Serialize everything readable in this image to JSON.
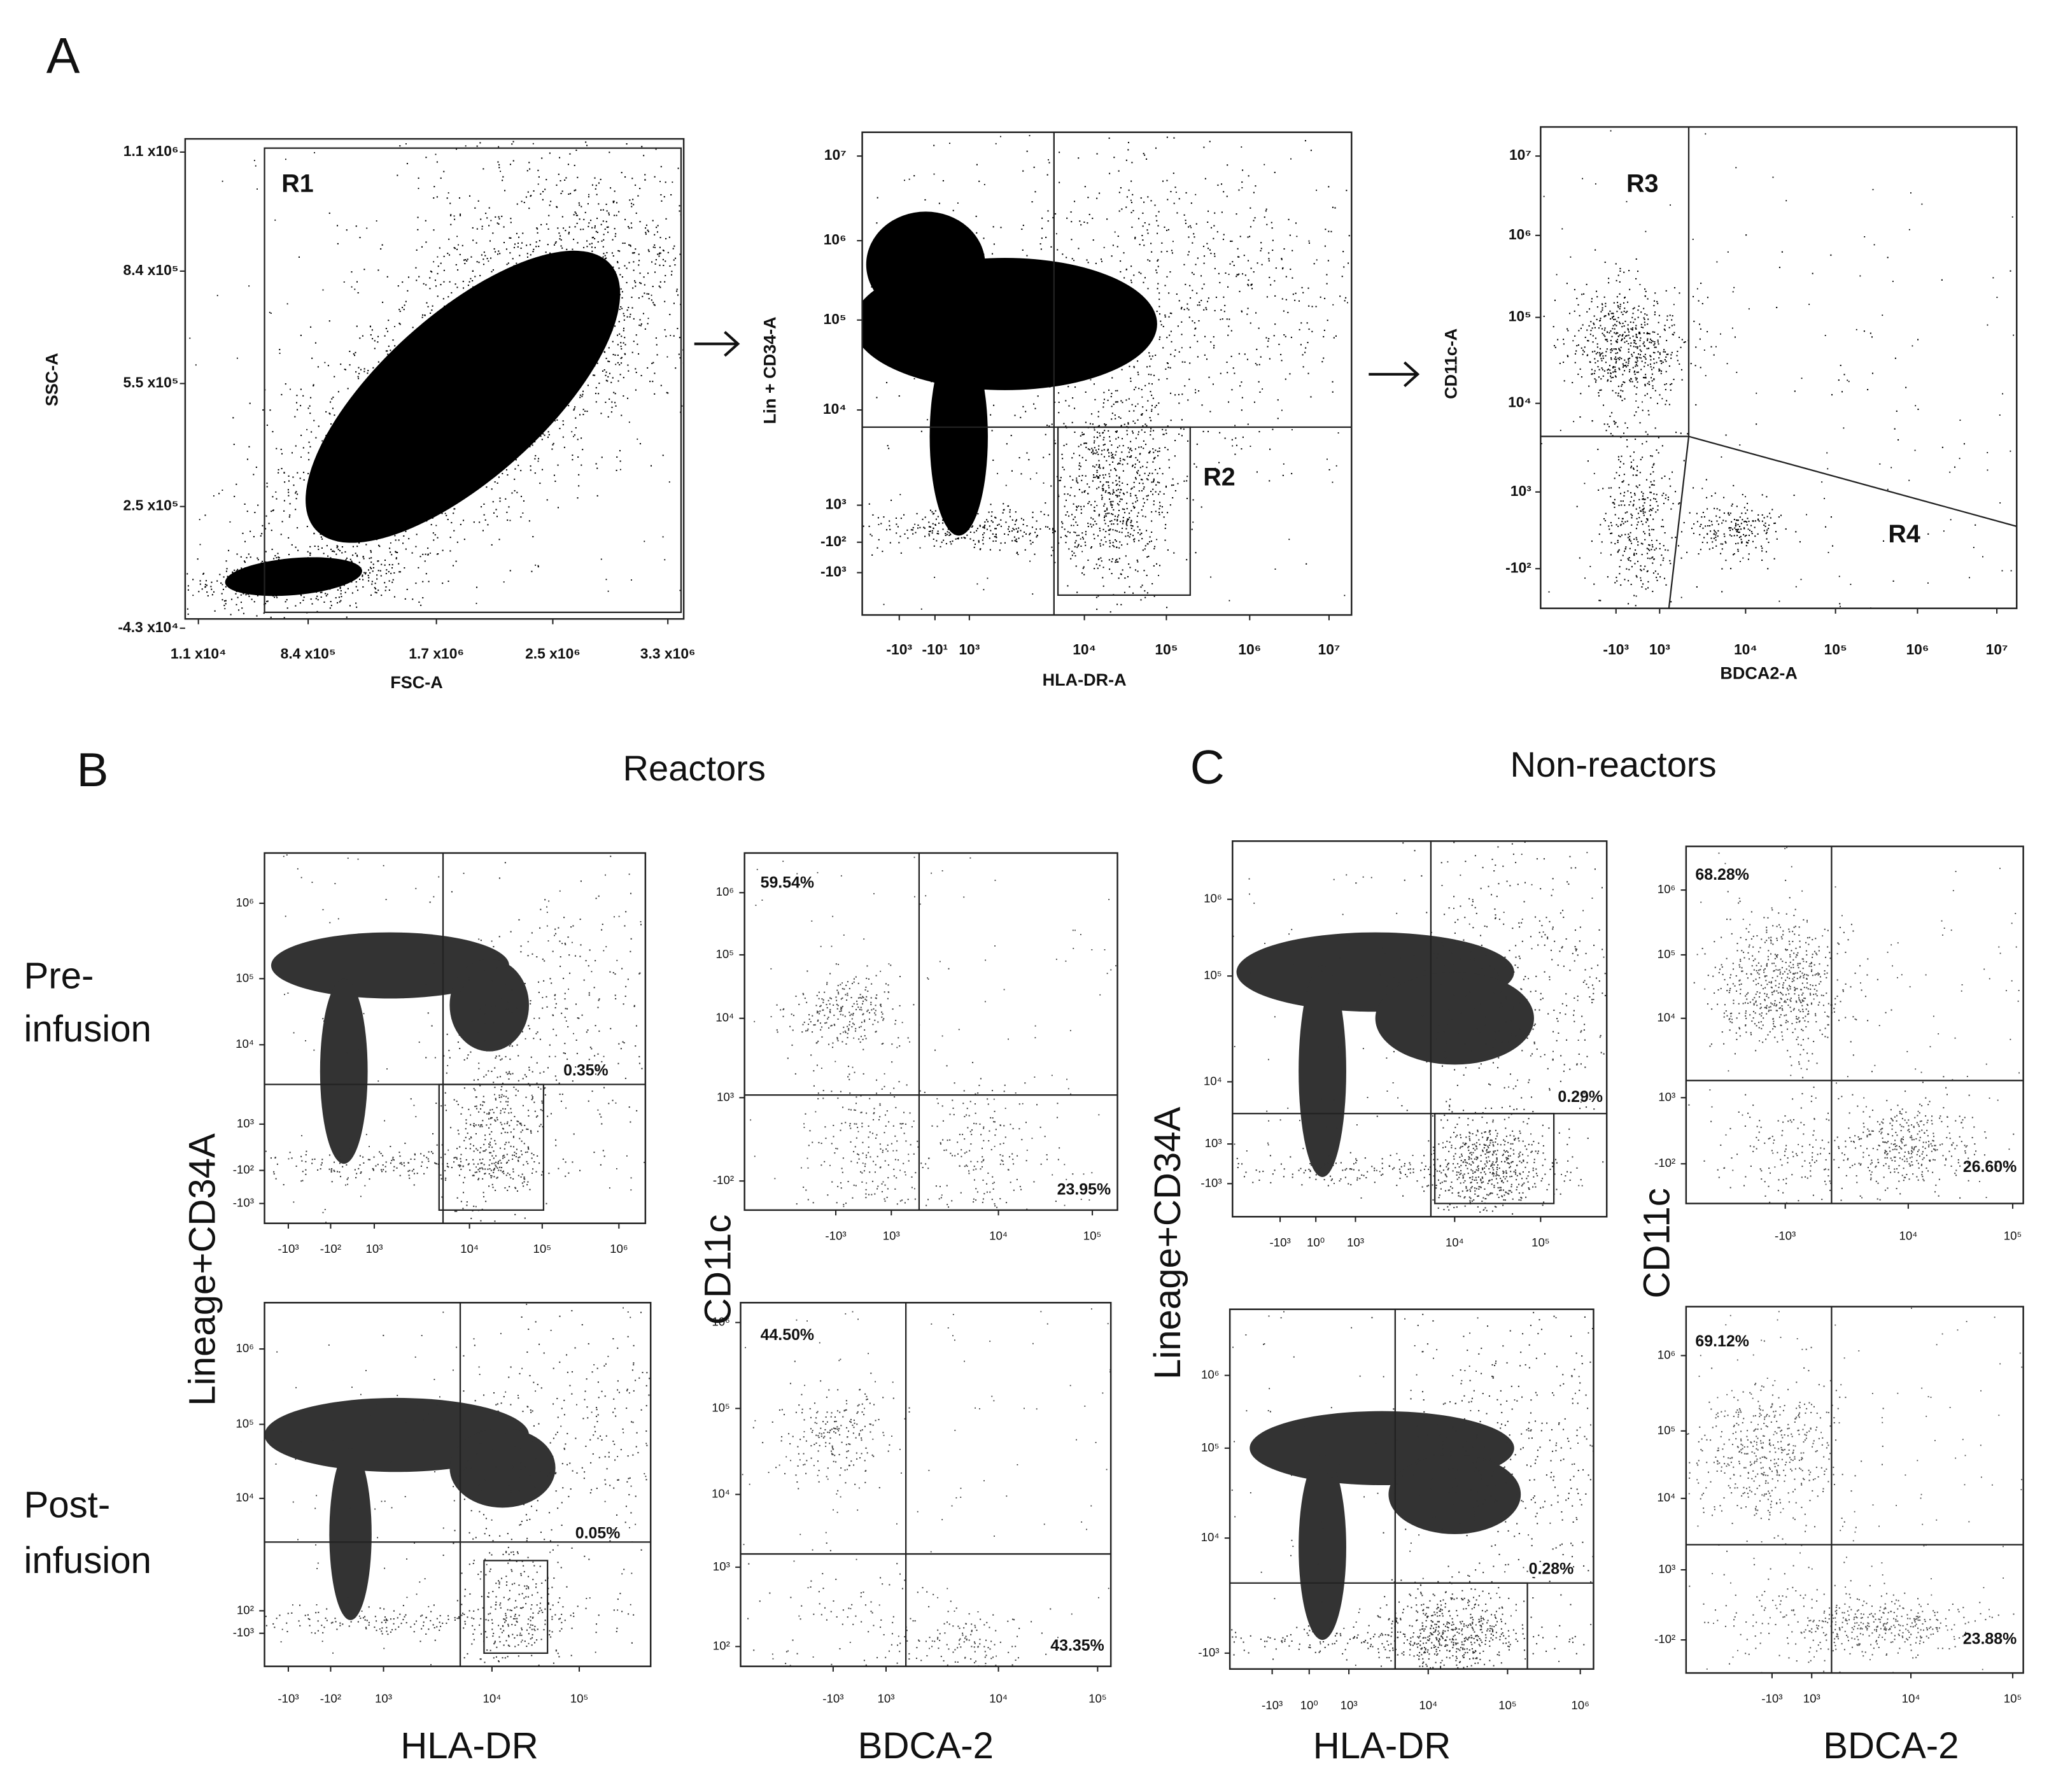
{
  "panel_a": {
    "label": "A",
    "plots": [
      {
        "x_label": "FSC-A",
        "y_label": "SSC-A",
        "x_ticks": [
          "1.1 x10⁴",
          "8.4 x10⁵",
          "1.7 x10⁶",
          "2.5 x10⁶",
          "3.3 x10⁶"
        ],
        "y_ticks": [
          "1.1 x10⁶",
          "8.4 x10⁵",
          "5.5 x10⁵",
          "2.5 x10⁵",
          "-4.3 x10⁴"
        ],
        "gates": [
          "R1"
        ]
      },
      {
        "x_label": "HLA-DR-A",
        "y_label": "Lin + CD34-A",
        "x_ticks": [
          "-10³",
          "-10¹",
          "10³",
          "10⁴",
          "10⁵",
          "10⁶",
          "10⁷"
        ],
        "y_ticks": [
          "10⁷",
          "10⁶",
          "10⁵",
          "10⁴",
          "10³",
          "-10²",
          "-10³"
        ],
        "gates": [
          "R2"
        ]
      },
      {
        "x_label": "BDCA2-A",
        "y_label": "CD11c-A",
        "x_ticks": [
          "-10³",
          "10³",
          "10⁴",
          "10⁵",
          "10⁶",
          "10⁷"
        ],
        "y_ticks": [
          "10⁷",
          "10⁶",
          "10⁵",
          "10⁴",
          "10³",
          "-10²"
        ],
        "gates": [
          "R3",
          "R4"
        ]
      }
    ]
  },
  "panel_b": {
    "label": "B",
    "title": "Reactors",
    "row_labels": [
      [
        "Pre-",
        "infusion"
      ],
      [
        "Post-",
        "infusion"
      ]
    ],
    "lineage_y_label": "Lineage+CD34A",
    "hla_x_label": "HLA-DR",
    "cd11c_y_label": "CD11c",
    "bdca_x_label": "BDCA-2",
    "plots": [
      {
        "x_ticks": [
          "-10³",
          "-10²",
          "10³",
          "10⁴",
          "10⁵",
          "10⁶"
        ],
        "y_ticks": [
          "10⁶",
          "10⁵",
          "10⁴",
          "10³",
          "-10²",
          "-10³"
        ],
        "percentages": [
          "0.35%"
        ]
      },
      {
        "x_ticks": [
          "-10³",
          "-10²",
          "10³",
          "10⁴",
          "10⁵"
        ],
        "y_ticks": [
          "10⁶",
          "10⁵",
          "10⁴",
          "10²",
          "-10³"
        ],
        "percentages": [
          "0.05%"
        ]
      },
      {
        "x_ticks": [
          "-10³",
          "10³",
          "10⁴",
          "10⁵"
        ],
        "y_ticks": [
          "10⁶",
          "10⁵",
          "10⁴",
          "10³",
          "-10²"
        ],
        "percentages": [
          "59.54%",
          "23.95%"
        ]
      },
      {
        "x_ticks": [
          "-10³",
          "10³",
          "10⁴",
          "10⁵"
        ],
        "y_ticks": [
          "10⁶",
          "10⁵",
          "10⁴",
          "10³",
          "10²"
        ],
        "percentages": [
          "44.50%",
          "43.35%"
        ]
      }
    ]
  },
  "panel_c": {
    "label": "C",
    "title": "Non-reactors",
    "lineage_y_label": "Lineage+CD34A",
    "hla_x_label": "HLA-DR",
    "cd11c_y_label": "CD11c",
    "bdca_x_label": "BDCA-2",
    "plots": [
      {
        "x_ticks": [
          "-10³",
          "10⁰",
          "10³",
          "10⁴",
          "10⁵"
        ],
        "y_ticks": [
          "10⁶",
          "10⁵",
          "10⁴",
          "10³",
          "-10³"
        ],
        "percentages": [
          "0.29%"
        ]
      },
      {
        "x_ticks": [
          "-10³",
          "10⁰",
          "10³",
          "10⁴",
          "10⁵",
          "10⁶"
        ],
        "y_ticks": [
          "10⁶",
          "10⁵",
          "10⁴",
          "-10³"
        ],
        "percentages": [
          "0.28%"
        ]
      },
      {
        "x_ticks": [
          "-10³",
          "10⁴",
          "10⁵"
        ],
        "y_ticks": [
          "10⁶",
          "10⁵",
          "10⁴",
          "10³",
          "-10²"
        ],
        "percentages": [
          "68.28%",
          "26.60%"
        ]
      },
      {
        "x_ticks": [
          "-10³",
          "10³",
          "10⁴",
          "10⁵"
        ],
        "y_ticks": [
          "10⁶",
          "10⁵",
          "10⁴",
          "10³",
          "-10²"
        ],
        "percentages": [
          "69.12%",
          "23.88%"
        ]
      }
    ]
  }
}
